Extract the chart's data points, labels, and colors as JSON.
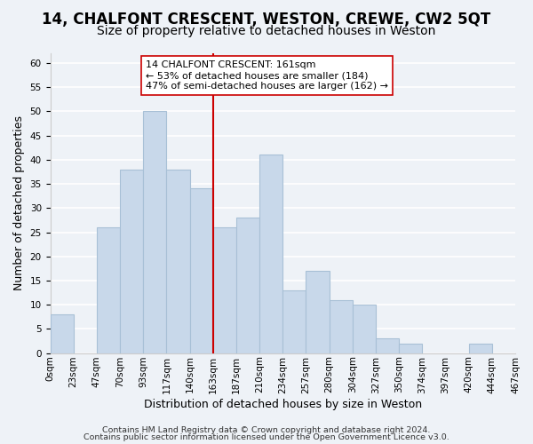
{
  "title": "14, CHALFONT CRESCENT, WESTON, CREWE, CW2 5QT",
  "subtitle": "Size of property relative to detached houses in Weston",
  "xlabel": "Distribution of detached houses by size in Weston",
  "ylabel": "Number of detached properties",
  "bar_color": "#c8d8ea",
  "bar_edge_color": "#a8c0d6",
  "bin_labels": [
    "0sqm",
    "23sqm",
    "47sqm",
    "70sqm",
    "93sqm",
    "117sqm",
    "140sqm",
    "163sqm",
    "187sqm",
    "210sqm",
    "234sqm",
    "257sqm",
    "280sqm",
    "304sqm",
    "327sqm",
    "350sqm",
    "374sqm",
    "397sqm",
    "420sqm",
    "444sqm",
    "467sqm"
  ],
  "values": [
    8,
    0,
    26,
    38,
    50,
    38,
    34,
    26,
    28,
    41,
    13,
    17,
    11,
    10,
    3,
    2,
    0,
    0,
    2,
    0
  ],
  "ylim": [
    0,
    62
  ],
  "yticks": [
    0,
    5,
    10,
    15,
    20,
    25,
    30,
    35,
    40,
    45,
    50,
    55,
    60
  ],
  "vline_color": "#cc0000",
  "vline_index": 7,
  "annotation_title": "14 CHALFONT CRESCENT: 161sqm",
  "annotation_line1": "← 53% of detached houses are smaller (184)",
  "annotation_line2": "47% of semi-detached houses are larger (162) →",
  "annotation_box_color": "#ffffff",
  "annotation_box_edge": "#cc0000",
  "footnote1": "Contains HM Land Registry data © Crown copyright and database right 2024.",
  "footnote2": "Contains public sector information licensed under the Open Government Licence v3.0.",
  "background_color": "#eef2f7",
  "plot_bg_color": "#eef2f7",
  "grid_color": "#ffffff",
  "title_fontsize": 12,
  "subtitle_fontsize": 10,
  "axis_label_fontsize": 9,
  "tick_fontsize": 7.5,
  "footnote_fontsize": 6.8
}
